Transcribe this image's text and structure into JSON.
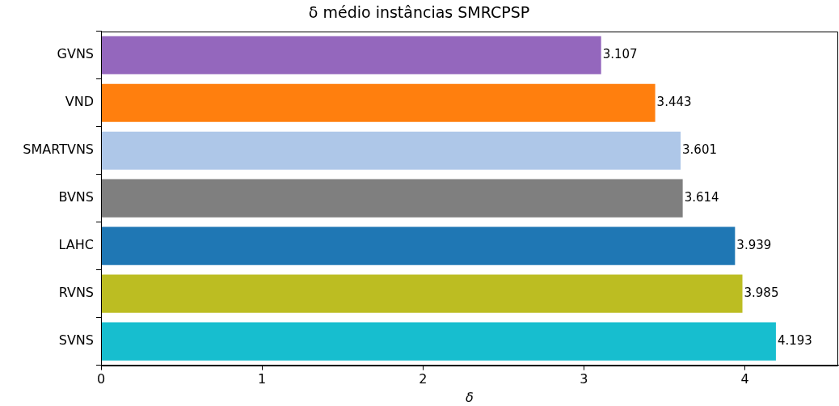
{
  "chart_data": {
    "type": "bar",
    "orientation": "horizontal",
    "title": "δ médio instâncias SMRCPSP",
    "xlabel": "δ",
    "categories": [
      "GVNS",
      "VND",
      "SMARTVNS",
      "BVNS",
      "LAHC",
      "RVNS",
      "SVNS"
    ],
    "values": [
      3.107,
      3.443,
      3.601,
      3.614,
      3.939,
      3.985,
      4.193
    ],
    "colors": [
      "#9467bd",
      "#ff7f0e",
      "#aec7e8",
      "#7f7f7f",
      "#1f77b4",
      "#bcbd22",
      "#17becf"
    ],
    "xlim": [
      0,
      4.58
    ],
    "xticks": [
      0,
      1,
      2,
      3,
      4
    ],
    "grid": false,
    "legend": false,
    "data_labels": true
  }
}
